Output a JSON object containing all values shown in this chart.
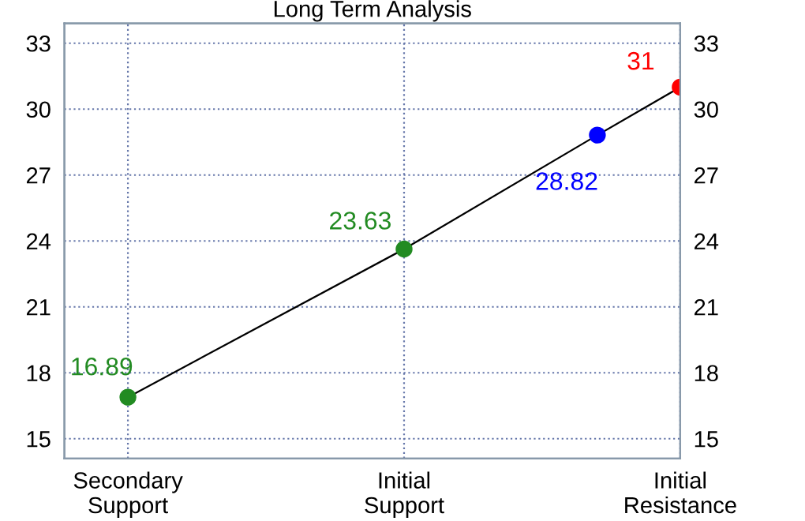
{
  "chart_data": {
    "type": "line",
    "title": "Long Term Analysis",
    "categories": [
      "Secondary\nSupport",
      null,
      null,
      null,
      null,
      null,
      null,
      null,
      null,
      null,
      "Initial\nSupport",
      null,
      null,
      null,
      null,
      null,
      null,
      null,
      null,
      null,
      "Initial\nResistance"
    ],
    "ylim": [
      14.1,
      33.9
    ],
    "yticks": [
      15,
      18,
      21,
      24,
      27,
      30,
      33
    ],
    "y2lim": [
      14.1,
      33.9
    ],
    "y2ticks": [
      15,
      18,
      21,
      24,
      27,
      30,
      33
    ],
    "series": [
      {
        "color": "#000000",
        "colors": [
          "#228b22",
          null,
          null,
          null,
          null,
          null,
          null,
          null,
          null,
          null,
          "#228b22",
          null,
          null,
          null,
          null,
          null,
          null,
          "#0000ff",
          null,
          null,
          "#ff0000"
        ],
        "values": [
          16.89,
          null,
          null,
          null,
          null,
          null,
          null,
          null,
          null,
          null,
          23.63,
          null,
          null,
          null,
          null,
          null,
          null,
          28.82,
          null,
          null,
          31
        ]
      }
    ],
    "marker": "circle",
    "line_style": "solid",
    "grid": true,
    "data_labels": true
  }
}
